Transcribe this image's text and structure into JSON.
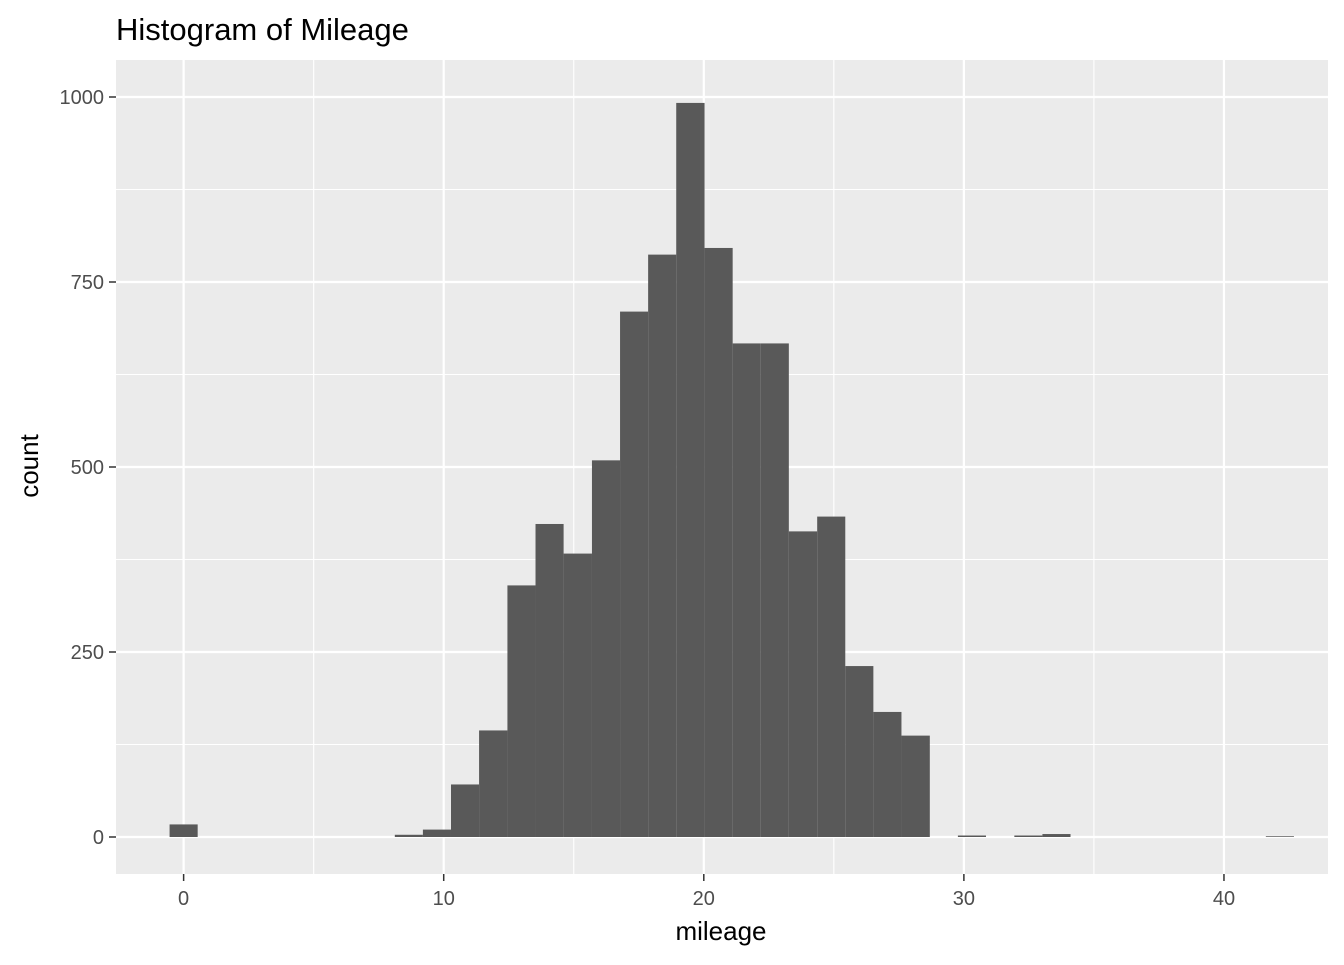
{
  "chart_data": {
    "type": "histogram",
    "title": "Histogram of Mileage",
    "xlabel": "mileage",
    "ylabel": "count",
    "xlim": [
      -2.6,
      44.0
    ],
    "ylim": [
      -50,
      1050
    ],
    "x_ticks": [
      0,
      10,
      20,
      30,
      40
    ],
    "x_tick_labels": [
      "0",
      "10",
      "20",
      "30",
      "40"
    ],
    "x_minor_ticks": [
      5,
      15,
      25,
      35
    ],
    "y_ticks": [
      0,
      250,
      500,
      750,
      1000
    ],
    "y_tick_labels": [
      "0",
      "250",
      "500",
      "750",
      "1000"
    ],
    "y_minor_ticks": [
      125,
      375,
      625,
      875
    ],
    "grid": true,
    "bar_color": "#595959",
    "panel_background": "#ebebeb",
    "grid_color": "#ffffff",
    "bins": [
      {
        "x0": -0.54,
        "x1": 0.54,
        "count": 17
      },
      {
        "x0": 8.12,
        "x1": 9.2,
        "count": 3
      },
      {
        "x0": 9.2,
        "x1": 10.28,
        "count": 10
      },
      {
        "x0": 10.28,
        "x1": 11.36,
        "count": 71
      },
      {
        "x0": 11.36,
        "x1": 12.45,
        "count": 144
      },
      {
        "x0": 12.45,
        "x1": 13.53,
        "count": 340
      },
      {
        "x0": 13.53,
        "x1": 14.61,
        "count": 423
      },
      {
        "x0": 14.61,
        "x1": 15.7,
        "count": 383
      },
      {
        "x0": 15.7,
        "x1": 16.78,
        "count": 509
      },
      {
        "x0": 16.78,
        "x1": 17.86,
        "count": 710
      },
      {
        "x0": 17.86,
        "x1": 18.94,
        "count": 787
      },
      {
        "x0": 18.94,
        "x1": 20.03,
        "count": 992
      },
      {
        "x0": 20.03,
        "x1": 21.11,
        "count": 796
      },
      {
        "x0": 21.11,
        "x1": 22.19,
        "count": 667
      },
      {
        "x0": 22.19,
        "x1": 23.27,
        "count": 667
      },
      {
        "x0": 23.27,
        "x1": 24.36,
        "count": 413
      },
      {
        "x0": 24.36,
        "x1": 25.44,
        "count": 433
      },
      {
        "x0": 25.44,
        "x1": 26.52,
        "count": 231
      },
      {
        "x0": 26.52,
        "x1": 27.6,
        "count": 169
      },
      {
        "x0": 27.6,
        "x1": 28.69,
        "count": 137
      },
      {
        "x0": 29.77,
        "x1": 30.85,
        "count": 2
      },
      {
        "x0": 31.94,
        "x1": 33.02,
        "count": 2
      },
      {
        "x0": 33.02,
        "x1": 34.1,
        "count": 4
      },
      {
        "x0": 41.61,
        "x1": 42.69,
        "count": 1
      }
    ]
  }
}
